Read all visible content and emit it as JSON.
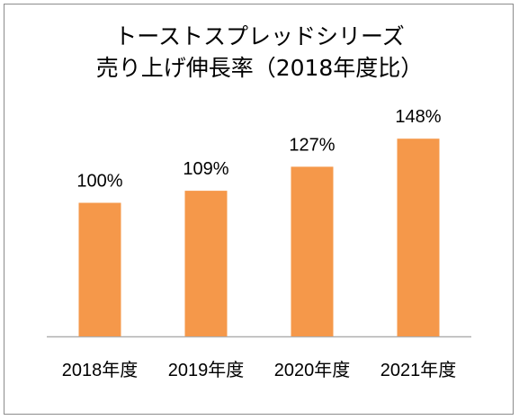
{
  "chart_data": {
    "type": "bar",
    "title": "トーストスプレッドシリーズ",
    "subtitle": "売り上げ伸長率（2018年度比）",
    "categories": [
      "2018年度",
      "2019年度",
      "2020年度",
      "2021年度"
    ],
    "values": [
      100,
      109,
      127,
      148
    ],
    "value_labels": [
      "100%",
      "109%",
      "127%",
      "148%"
    ],
    "xlabel": "",
    "ylabel": "",
    "ylim": [
      0,
      200
    ],
    "grid": false,
    "legend": "none",
    "colors": {
      "bar": "#f5984a",
      "axis": "#b0b0b0",
      "border": "#8c8c8c",
      "text": "#000000"
    }
  }
}
